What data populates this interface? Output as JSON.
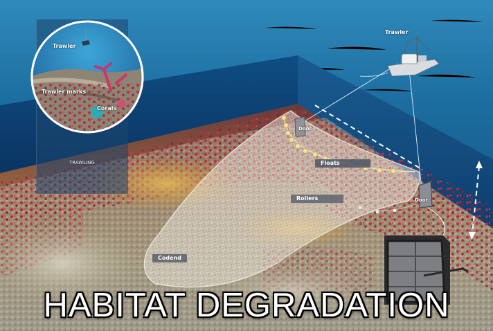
{
  "title": "HABITAT DEGRADATION",
  "inset": {
    "heading": "TRAWLING",
    "labels": {
      "trawler": "Trawler",
      "marks": "Trawler marks",
      "corals": "Corals"
    }
  },
  "scene_labels": {
    "trawler": "Trawler",
    "door_top": "Door",
    "floats": "Floats",
    "rollers": "Rollers",
    "door_right": "Door",
    "codend": "Codend"
  },
  "colors": {
    "water_surface": "#1f6f9e",
    "water_deep": "#0b3f70",
    "coral_red": "#b5283c",
    "seabed_sand": "#c9a45a",
    "seabed_rock": "#a7a08c",
    "float_yellow": "#f4e39a",
    "tag_grey": "#4b5564"
  }
}
